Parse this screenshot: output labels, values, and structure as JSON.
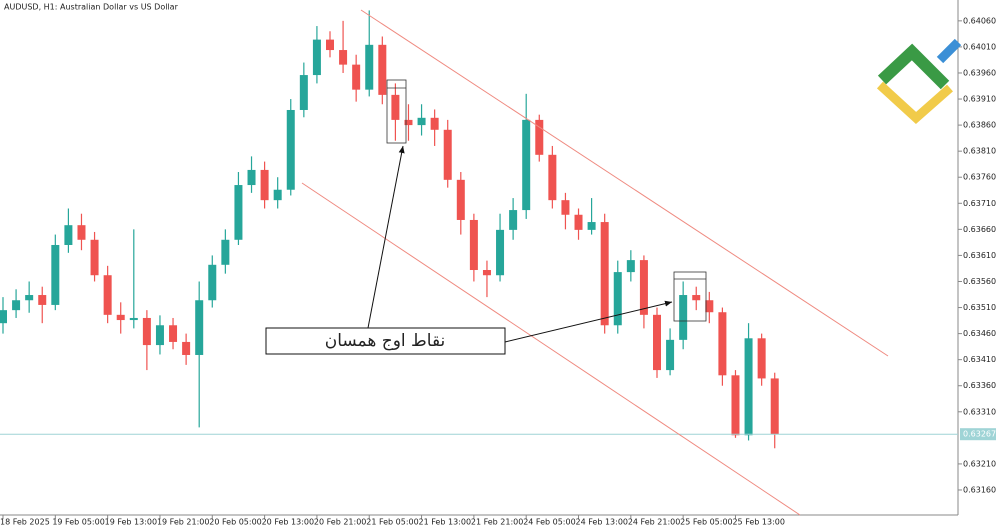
{
  "chart_data": {
    "type": "candlestick",
    "title": "AUDUSD, H1:  Australian Dollar vs US Dollar",
    "annotation": "نقاط اوج همسان",
    "up_color": "#26a69a",
    "down_color": "#ef5350",
    "current_price": 0.63267,
    "categories": [
      "18 Feb 2025",
      null,
      null,
      null,
      "19 Feb 05:00",
      null,
      null,
      null,
      "19 Feb 13:00",
      null,
      null,
      null,
      "19 Feb 21:00",
      null,
      null,
      null,
      "20 Feb 05:00",
      null,
      null,
      null,
      "20 Feb 13:00",
      null,
      null,
      null,
      "20 Feb 21:00",
      null,
      null,
      null,
      "21 Feb 05:00",
      null,
      null,
      null,
      "21 Feb 13:00",
      null,
      null,
      null,
      "21 Feb 21:00",
      null,
      null,
      null,
      "24 Feb 05:00",
      null,
      null,
      null,
      "24 Feb 13:00",
      null,
      null,
      null,
      "24 Feb 21:00",
      null,
      null,
      null,
      "25 Feb 05:00",
      null,
      null,
      null,
      "25 Feb 13:00",
      null,
      null,
      null
    ],
    "open": [
      0.6348,
      0.63505,
      0.63524,
      0.63534,
      0.63515,
      0.6363,
      0.63668,
      0.6364,
      0.63572,
      0.63496,
      0.63486,
      0.6349,
      0.63438,
      0.63476,
      0.63444,
      0.63419,
      0.63524,
      0.63592,
      0.6364,
      0.63745,
      0.63774,
      0.63716,
      0.63736,
      0.63889,
      0.63956,
      0.64024,
      0.64004,
      0.63976,
      0.63928,
      0.64014,
      0.63918,
      0.6387,
      0.6386,
      0.63874,
      0.63851,
      0.63755,
      0.63678,
      0.63582,
      0.63572,
      0.63659,
      0.63697,
      0.6387,
      0.63803,
      0.63716,
      0.63688,
      0.63659,
      0.63674,
      0.63476,
      0.63578,
      0.63601,
      0.63496,
      0.6339,
      0.63448,
      0.63534,
      0.63524,
      0.63501,
      0.6338,
      0.63265,
      0.63451,
      0.63374
    ],
    "high": [
      0.6353,
      0.63545,
      0.6356,
      0.6355,
      0.6365,
      0.637,
      0.6369,
      0.63655,
      0.6359,
      0.6352,
      0.6366,
      0.63505,
      0.63495,
      0.6349,
      0.6346,
      0.6356,
      0.6361,
      0.6366,
      0.6377,
      0.638,
      0.6379,
      0.6376,
      0.6391,
      0.6398,
      0.6405,
      0.6404,
      0.6406,
      0.63995,
      0.6408,
      0.6403,
      0.6394,
      0.639,
      0.639,
      0.6389,
      0.6387,
      0.6377,
      0.6369,
      0.636,
      0.6369,
      0.6372,
      0.6392,
      0.6388,
      0.6382,
      0.6373,
      0.637,
      0.6372,
      0.6369,
      0.636,
      0.6362,
      0.6361,
      0.6351,
      0.6347,
      0.6356,
      0.6355,
      0.6354,
      0.6351,
      0.6339,
      0.6348,
      0.6346,
      0.63385
    ],
    "low": [
      0.6346,
      0.6349,
      0.635,
      0.6348,
      0.63505,
      0.63615,
      0.6362,
      0.6356,
      0.6348,
      0.6346,
      0.6347,
      0.6339,
      0.6342,
      0.6343,
      0.634,
      0.6328,
      0.6351,
      0.63575,
      0.6363,
      0.6373,
      0.637,
      0.637,
      0.63725,
      0.63875,
      0.6394,
      0.6399,
      0.6396,
      0.63905,
      0.63915,
      0.639,
      0.6383,
      0.6383,
      0.6384,
      0.6382,
      0.6374,
      0.6365,
      0.6356,
      0.6353,
      0.6356,
      0.6364,
      0.6368,
      0.6379,
      0.637,
      0.6366,
      0.6364,
      0.6365,
      0.6346,
      0.6346,
      0.6356,
      0.6347,
      0.63375,
      0.6338,
      0.6343,
      0.63505,
      0.6348,
      0.6336,
      0.6326,
      0.63255,
      0.6336,
      0.6324
    ],
    "close": [
      0.63505,
      0.63524,
      0.63534,
      0.63515,
      0.6363,
      0.63668,
      0.6364,
      0.63572,
      0.63496,
      0.63486,
      0.6349,
      0.63438,
      0.63476,
      0.63444,
      0.63419,
      0.63524,
      0.63592,
      0.6364,
      0.63745,
      0.63774,
      0.63716,
      0.63736,
      0.63889,
      0.63956,
      0.64024,
      0.64004,
      0.63976,
      0.63928,
      0.64014,
      0.63918,
      0.6387,
      0.6386,
      0.63874,
      0.63851,
      0.63755,
      0.63678,
      0.63582,
      0.63572,
      0.63659,
      0.63697,
      0.6387,
      0.63803,
      0.63716,
      0.63688,
      0.63659,
      0.63674,
      0.63476,
      0.63578,
      0.63601,
      0.63496,
      0.6339,
      0.63448,
      0.63534,
      0.63524,
      0.63501,
      0.6338,
      0.63265,
      0.63451,
      0.63374,
      0.63267
    ],
    "ylim": [
      0.63112,
      0.641
    ],
    "yticks": [
      {
        "value": 0.6406,
        "label": "0.64060"
      },
      {
        "value": 0.6401,
        "label": "0.64010"
      },
      {
        "value": 0.6396,
        "label": "0.63960"
      },
      {
        "value": 0.6391,
        "label": "0.63910"
      },
      {
        "value": 0.6386,
        "label": "0.63860"
      },
      {
        "value": 0.6381,
        "label": "0.63810"
      },
      {
        "value": 0.6376,
        "label": "0.63760"
      },
      {
        "value": 0.6371,
        "label": "0.63710"
      },
      {
        "value": 0.6366,
        "label": "0.63660"
      },
      {
        "value": 0.6361,
        "label": "0.63610"
      },
      {
        "value": 0.6356,
        "label": "0.63560"
      },
      {
        "value": 0.6351,
        "label": "0.63510"
      },
      {
        "value": 0.6346,
        "label": "0.63460"
      },
      {
        "value": 0.6341,
        "label": "0.63410"
      },
      {
        "value": 0.6336,
        "label": "0.63360"
      },
      {
        "value": 0.6331,
        "label": "0.63310"
      },
      {
        "value": 0.6321,
        "label": "0.63210"
      },
      {
        "value": 0.6316,
        "label": "0.63160"
      }
    ]
  }
}
